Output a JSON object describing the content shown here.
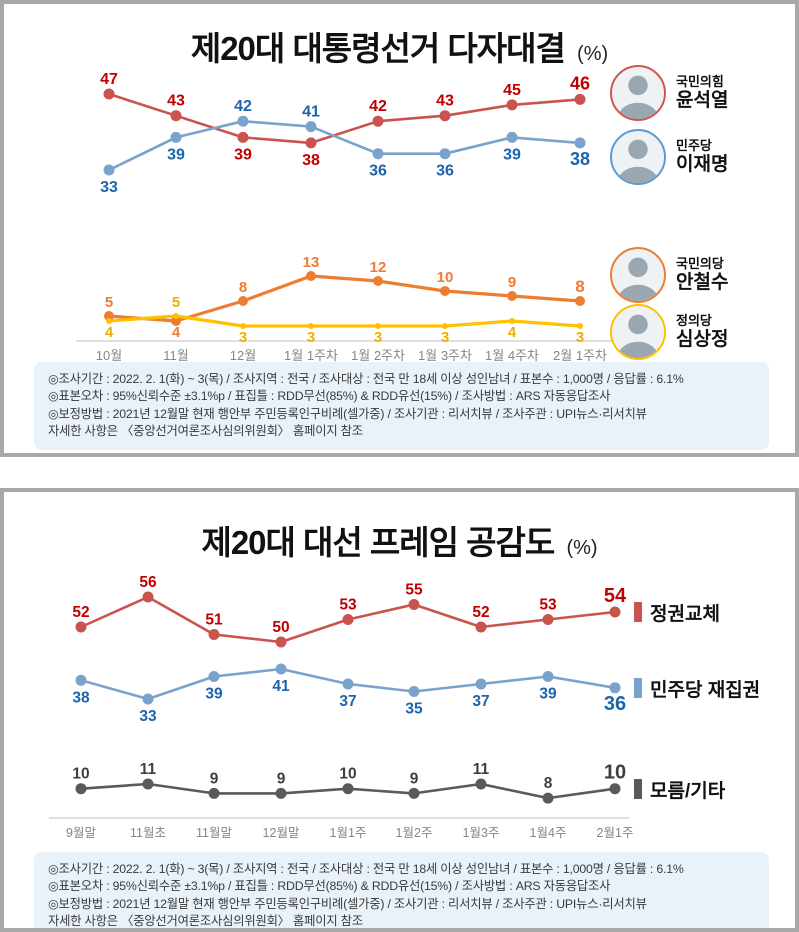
{
  "chart_data": [
    {
      "type": "line",
      "title": "제20대 대통령선거 다자대결",
      "unit": "(%)",
      "categories": [
        "10월",
        "11월",
        "12월",
        "1월 1주차",
        "1월 2주차",
        "1월 3주차",
        "1월 4주차",
        "2월 1주차"
      ],
      "series": [
        {
          "name": "윤석열",
          "party": "국민의힘",
          "color": "#c9544e",
          "label_color": "#c00000",
          "values": [
            47,
            43,
            39,
            38,
            42,
            43,
            45,
            46
          ]
        },
        {
          "name": "이재명",
          "party": "민주당",
          "color": "#7aa3cc",
          "label_color": "#1c64ad",
          "values": [
            33,
            39,
            42,
            41,
            36,
            36,
            39,
            38
          ]
        },
        {
          "name": "안철수",
          "party": "국민의당",
          "color": "#ed7d31",
          "label_color": "#ed7d31",
          "values": [
            5,
            4,
            8,
            13,
            12,
            10,
            9,
            8
          ]
        },
        {
          "name": "심상정",
          "party": "정의당",
          "color": "#ffc000",
          "label_color": "#eeaf00",
          "values": [
            4,
            5,
            3,
            3,
            3,
            3,
            4,
            3
          ]
        }
      ],
      "legend": [
        {
          "party": "국민의힘",
          "name": "윤석열",
          "ring": "#d0564f"
        },
        {
          "party": "민주당",
          "name": "이재명",
          "ring": "#5b9bd5"
        },
        {
          "party": "국민의당",
          "name": "안철수",
          "ring": "#ed7d31"
        },
        {
          "party": "정의당",
          "name": "심상정",
          "ring": "#ffc000"
        }
      ],
      "legend_position": "right",
      "grid": false,
      "footnotes": [
        "◎조사기간 : 2022. 2. 1(화) ~ 3(목) / 조사지역 : 전국 / 조사대상 : 전국 만 18세 이상 성인남녀 / 표본수 : 1,000명 / 응답률 : 6.1%",
        "◎표본오차 : 95%신뢰수준 ±3.1%p  / 표집틀 : RDD무선(85%) & RDD유선(15%) / 조사방법 : ARS 자동응답조사",
        "◎보정방법 : 2021년 12월말 현재 행안부 주민등록인구비례(셀가중) / 조사기관 : 리서치뷰 / 조사주관 : UPI뉴스·리서치뷰",
        "자세한 사항은 〈중앙선거여론조사심의위원회〉 홈페이지 참조"
      ]
    },
    {
      "type": "line",
      "title": "제20대 대선 프레임 공감도",
      "unit": "(%)",
      "categories": [
        "9월말",
        "11월초",
        "11월말",
        "12월말",
        "1월1주",
        "1월2주",
        "1월3주",
        "1월4주",
        "2월1주"
      ],
      "series": [
        {
          "name": "정권교체",
          "color": "#c9544e",
          "label_color": "#c00000",
          "values": [
            52,
            56,
            51,
            50,
            53,
            55,
            52,
            53,
            54
          ]
        },
        {
          "name": "민주당 재집권",
          "color": "#7aa3cc",
          "label_color": "#1c64ad",
          "values": [
            38,
            33,
            39,
            41,
            37,
            35,
            37,
            39,
            36
          ]
        },
        {
          "name": "모름/기타",
          "color": "#5a5a5a",
          "label_color": "#3f3f3f",
          "values": [
            10,
            11,
            9,
            9,
            10,
            9,
            11,
            8,
            10
          ]
        }
      ],
      "legend": [
        {
          "label": "정권교체",
          "color": "#c9544e"
        },
        {
          "label": "민주당 재집권",
          "color": "#7aa3cc"
        },
        {
          "label": "모름/기타",
          "color": "#5a5a5a"
        }
      ],
      "legend_position": "right",
      "grid": false,
      "footnotes": [
        "◎조사기간 : 2022. 2. 1(화) ~ 3(목) / 조사지역 : 전국 / 조사대상 : 전국 만 18세 이상 성인남녀 / 표본수 : 1,000명 / 응답률 : 6.1%",
        "◎표본오차 : 95%신뢰수준 ±3.1%p  / 표집틀 : RDD무선(85%) & RDD유선(15%) / 조사방법 : ARS 자동응답조사",
        "◎보정방법 : 2021년 12월말 현재 행안부 주민등록인구비례(셀가중) / 조사기관 : 리서치뷰 / 조사주관 : UPI뉴스·리서치뷰",
        "자세한 사항은 〈중앙선거여론조사심의위원회〉 홈페이지 참조"
      ]
    }
  ]
}
